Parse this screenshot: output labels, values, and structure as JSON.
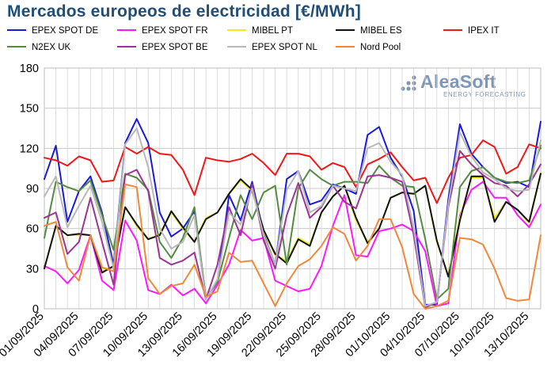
{
  "chart_data": {
    "type": "line",
    "title": "Mercados europeos de electricidad [€/MWh]",
    "ylim": [
      0,
      180
    ],
    "yticks": [
      0,
      30,
      60,
      90,
      120,
      150,
      180
    ],
    "grid": true,
    "legend_position": "top",
    "x": [
      "01/09/2025",
      "02/09/2025",
      "03/09/2025",
      "04/09/2025",
      "05/09/2025",
      "06/09/2025",
      "07/09/2025",
      "08/09/2025",
      "09/09/2025",
      "10/09/2025",
      "11/09/2025",
      "12/09/2025",
      "13/09/2025",
      "14/09/2025",
      "15/09/2025",
      "16/09/2025",
      "17/09/2025",
      "18/09/2025",
      "19/09/2025",
      "20/09/2025",
      "21/09/2025",
      "22/09/2025",
      "23/09/2025",
      "24/09/2025",
      "25/09/2025",
      "26/09/2025",
      "27/09/2025",
      "28/09/2025",
      "29/09/2025",
      "30/09/2025",
      "01/10/2025",
      "02/10/2025",
      "03/10/2025",
      "04/10/2025",
      "05/10/2025",
      "06/10/2025",
      "07/10/2025",
      "08/10/2025",
      "09/10/2025",
      "10/10/2025",
      "11/10/2025",
      "12/10/2025",
      "13/10/2025",
      "14/10/2025"
    ],
    "xtick_labels": [
      "01/09/2025",
      "04/09/2025",
      "07/09/2025",
      "10/09/2025",
      "13/09/2025",
      "16/09/2025",
      "19/09/2025",
      "22/09/2025",
      "25/09/2025",
      "28/09/2025",
      "01/10/2025",
      "04/10/2025",
      "07/10/2025",
      "10/10/2025",
      "13/10/2025"
    ],
    "series": [
      {
        "name": "EPEX SPOT DE",
        "color": "#1a1adb",
        "values": [
          97,
          122,
          65,
          88,
          99,
          72,
          33,
          124,
          142,
          124,
          72,
          54,
          60,
          73,
          8,
          20,
          85,
          66,
          95,
          56,
          33,
          97,
          103,
          78,
          81,
          93,
          90,
          86,
          130,
          136,
          113,
          99,
          73,
          3,
          3,
          82,
          138,
          116,
          106,
          98,
          94,
          95,
          91,
          140
        ]
      },
      {
        "name": "EPEX SPOT FR",
        "color": "#ff18ff",
        "values": [
          32,
          28,
          19,
          29,
          55,
          21,
          14,
          66,
          51,
          14,
          11,
          18,
          10,
          15,
          4,
          18,
          33,
          59,
          51,
          53,
          21,
          17,
          13,
          15,
          32,
          62,
          85,
          40,
          39,
          58,
          60,
          63,
          58,
          43,
          2,
          4,
          70,
          89,
          95,
          83,
          83,
          70,
          61,
          78
        ]
      },
      {
        "name": "MIBEL PT",
        "color": "#f0f016",
        "values": [
          30,
          62,
          55,
          55,
          55,
          28,
          32,
          76,
          62,
          52,
          56,
          72,
          60,
          50,
          68,
          72,
          86,
          96,
          88,
          58,
          40,
          36,
          53,
          48,
          72,
          84,
          92,
          66,
          50,
          60,
          83,
          87,
          86,
          92,
          50,
          25,
          68,
          98,
          98,
          68,
          80,
          74,
          64,
          102
        ]
      },
      {
        "name": "MIBEL ES",
        "color": "#111111",
        "values": [
          30,
          62,
          55,
          56,
          55,
          27,
          32,
          76,
          63,
          52,
          55,
          73,
          61,
          50,
          67,
          72,
          86,
          97,
          89,
          59,
          41,
          34,
          52,
          47,
          72,
          84,
          92,
          68,
          49,
          60,
          83,
          87,
          86,
          92,
          51,
          24,
          66,
          99,
          99,
          65,
          80,
          74,
          65,
          101
        ]
      },
      {
        "name": "IPEX IT",
        "color": "#f01818",
        "values": [
          113,
          111,
          107,
          114,
          111,
          95,
          96,
          121,
          116,
          121,
          116,
          115,
          104,
          85,
          113,
          111,
          110,
          112,
          116,
          109,
          100,
          116,
          116,
          114,
          104,
          109,
          106,
          91,
          108,
          112,
          117,
          106,
          96,
          98,
          79,
          98,
          113,
          115,
          126,
          121,
          101,
          106,
          123,
          120
        ]
      },
      {
        "name": "N2EX UK",
        "color": "#558b3f",
        "values": [
          53,
          95,
          91,
          88,
          96,
          70,
          44,
          101,
          98,
          89,
          50,
          38,
          53,
          76,
          8,
          20,
          53,
          85,
          67,
          87,
          92,
          33,
          90,
          104,
          97,
          92,
          95,
          95,
          94,
          107,
          98,
          92,
          91,
          52,
          7,
          15,
          91,
          103,
          106,
          98,
          95,
          94,
          96,
          122
        ]
      },
      {
        "name": "EPEX SPOT BE",
        "color": "#9c3494",
        "values": [
          68,
          72,
          41,
          50,
          83,
          50,
          18,
          100,
          104,
          88,
          38,
          33,
          36,
          42,
          7,
          33,
          76,
          55,
          93,
          51,
          30,
          70,
          94,
          68,
          76,
          92,
          80,
          75,
          99,
          100,
          98,
          95,
          55,
          1,
          5,
          76,
          118,
          108,
          100,
          94,
          92,
          84,
          93,
          108
        ]
      },
      {
        "name": "EPEX SPOT NL",
        "color": "#b8b8b8",
        "values": [
          84,
          99,
          61,
          77,
          92,
          65,
          30,
          123,
          135,
          106,
          60,
          45,
          50,
          70,
          7,
          22,
          72,
          63,
          90,
          55,
          33,
          89,
          103,
          72,
          77,
          92,
          90,
          88,
          120,
          124,
          110,
          100,
          60,
          2,
          5,
          78,
          132,
          114,
          102,
          97,
          90,
          88,
          89,
          126
        ]
      },
      {
        "name": "Nord Pool",
        "color": "#f0883a",
        "values": [
          62,
          65,
          31,
          21,
          55,
          31,
          28,
          93,
          91,
          23,
          11,
          17,
          19,
          33,
          9,
          13,
          42,
          35,
          36,
          19,
          2,
          19,
          32,
          37,
          47,
          61,
          56,
          36,
          47,
          67,
          67,
          46,
          11,
          0,
          2,
          6,
          53,
          52,
          48,
          30,
          8,
          6,
          7,
          55
        ]
      }
    ]
  },
  "logo": {
    "name": "AleaSoft",
    "tagline": "ENERGY FORECASTING"
  }
}
